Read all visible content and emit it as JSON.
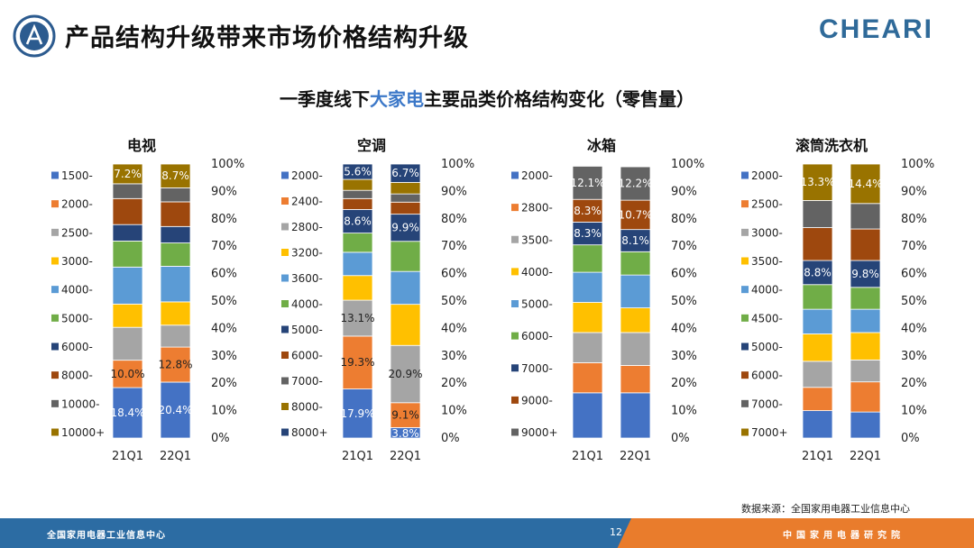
{
  "header": {
    "title": "产品结构升级带来市场价格结构升级",
    "brand": "CHEARI",
    "logo_text": "全国家用电器工业信息中心"
  },
  "subtitle": {
    "before": "一季度线下",
    "highlight": "大家电",
    "after": "主要品类价格结构变化（零售量）"
  },
  "source": "数据来源：全国家用电器工业信息中心",
  "footer": {
    "left": "全国家用电器工业信息中心",
    "page": "12",
    "right": "中国家用电器研究院"
  },
  "colors": {
    "c0": "#4472c4",
    "c1": "#ed7d31",
    "c2": "#a5a5a5",
    "c3": "#ffc000",
    "c4": "#5b9bd5",
    "c5": "#70ad47",
    "c6": "#264478",
    "c7": "#9e480e",
    "c8": "#636363",
    "c9": "#997300",
    "accent": "#3c78c8"
  },
  "chart_data": [
    {
      "type": "bar",
      "stacked": true,
      "title": "电视",
      "categories": [
        "21Q1",
        "22Q1"
      ],
      "yticks": [
        "0%",
        "10%",
        "20%",
        "30%",
        "40%",
        "50%",
        "60%",
        "70%",
        "80%",
        "90%",
        "100%"
      ],
      "series": [
        {
          "name": "1500-",
          "color": "c0",
          "values": [
            18.4,
            20.4
          ],
          "labels": [
            "18.4%",
            "20.4%"
          ]
        },
        {
          "name": "2000-",
          "color": "c1",
          "values": [
            10.0,
            12.8
          ],
          "labels": [
            "10.0%",
            "12.8%"
          ]
        },
        {
          "name": "2500-",
          "color": "c2",
          "values": [
            12.0,
            8.0
          ]
        },
        {
          "name": "3000-",
          "color": "c3",
          "values": [
            8.5,
            8.5
          ]
        },
        {
          "name": "4000-",
          "color": "c4",
          "values": [
            13.5,
            13.0
          ]
        },
        {
          "name": "5000-",
          "color": "c5",
          "values": [
            9.5,
            8.5
          ]
        },
        {
          "name": "6000-",
          "color": "c6",
          "values": [
            6.0,
            6.0
          ]
        },
        {
          "name": "8000-",
          "color": "c7",
          "values": [
            9.5,
            9.0
          ]
        },
        {
          "name": "10000-",
          "color": "c8",
          "values": [
            5.4,
            5.1
          ]
        },
        {
          "name": "10000+",
          "color": "c9",
          "values": [
            7.2,
            8.7
          ],
          "labels": [
            "7.2%",
            "8.7%"
          ]
        }
      ]
    },
    {
      "type": "bar",
      "stacked": true,
      "title": "空调",
      "categories": [
        "21Q1",
        "22Q1"
      ],
      "yticks": [
        "0%",
        "10%",
        "20%",
        "30%",
        "40%",
        "50%",
        "60%",
        "70%",
        "80%",
        "90%",
        "100%"
      ],
      "series": [
        {
          "name": "2000-",
          "color": "c0",
          "values": [
            17.9,
            3.8
          ],
          "labels": [
            "17.9%",
            "3.8%"
          ]
        },
        {
          "name": "2400-",
          "color": "c1",
          "values": [
            19.3,
            9.1
          ],
          "labels": [
            "19.3%",
            "9.1%"
          ]
        },
        {
          "name": "2800-",
          "color": "c2",
          "values": [
            13.1,
            20.9
          ],
          "labels": [
            "13.1%",
            "20.9%"
          ]
        },
        {
          "name": "3200-",
          "color": "c3",
          "values": [
            9.0,
            15.0
          ]
        },
        {
          "name": "3600-",
          "color": "c4",
          "values": [
            8.5,
            12.0
          ]
        },
        {
          "name": "4000-",
          "color": "c5",
          "values": [
            7.0,
            11.0
          ]
        },
        {
          "name": "5000-",
          "color": "c6",
          "values": [
            8.6,
            9.9
          ],
          "labels": [
            "8.6%",
            "9.9%"
          ]
        },
        {
          "name": "6000-",
          "color": "c7",
          "values": [
            4.0,
            4.4
          ]
        },
        {
          "name": "7000-",
          "color": "c8",
          "values": [
            3.0,
            3.0
          ]
        },
        {
          "name": "8000-",
          "color": "c9",
          "values": [
            4.0,
            4.2
          ]
        },
        {
          "name": "8000+",
          "color": "c6",
          "values": [
            5.6,
            6.7
          ],
          "labels": [
            "5.6%",
            "6.7%"
          ]
        }
      ]
    },
    {
      "type": "bar",
      "stacked": true,
      "title": "冰箱",
      "categories": [
        "21Q1",
        "22Q1"
      ],
      "yticks": [
        "0%",
        "10%",
        "20%",
        "30%",
        "40%",
        "50%",
        "60%",
        "70%",
        "80%",
        "90%",
        "100%"
      ],
      "series": [
        {
          "name": "2000-",
          "color": "c0",
          "values": [
            16.5,
            16.5
          ]
        },
        {
          "name": "2800-",
          "color": "c1",
          "values": [
            11.0,
            10.0
          ]
        },
        {
          "name": "3500-",
          "color": "c2",
          "values": [
            11.0,
            12.0
          ]
        },
        {
          "name": "4000-",
          "color": "c3",
          "values": [
            11.0,
            9.0
          ]
        },
        {
          "name": "5000-",
          "color": "c4",
          "values": [
            11.0,
            12.0
          ]
        },
        {
          "name": "6000-",
          "color": "c5",
          "values": [
            10.0,
            8.5
          ]
        },
        {
          "name": "7000-",
          "color": "c6",
          "values": [
            8.3,
            8.1
          ],
          "labels": [
            "8.3%",
            "8.1%"
          ]
        },
        {
          "name": "9000-",
          "color": "c7",
          "values": [
            8.3,
            10.7
          ],
          "labels": [
            "8.3%",
            "10.7%"
          ]
        },
        {
          "name": "9000+",
          "color": "c8",
          "values": [
            12.1,
            12.2
          ],
          "labels": [
            "12.1%",
            "12.2%"
          ]
        }
      ]
    },
    {
      "type": "bar",
      "stacked": true,
      "title": "滚筒洗衣机",
      "categories": [
        "21Q1",
        "22Q1"
      ],
      "yticks": [
        "0%",
        "10%",
        "20%",
        "30%",
        "40%",
        "50%",
        "60%",
        "70%",
        "80%",
        "90%",
        "100%"
      ],
      "series": [
        {
          "name": "2000-",
          "color": "c0",
          "values": [
            10.0,
            9.5
          ]
        },
        {
          "name": "2500-",
          "color": "c1",
          "values": [
            8.5,
            11.0
          ]
        },
        {
          "name": "3000-",
          "color": "c2",
          "values": [
            9.5,
            8.0
          ]
        },
        {
          "name": "3500-",
          "color": "c3",
          "values": [
            10.0,
            10.0
          ]
        },
        {
          "name": "4000-",
          "color": "c4",
          "values": [
            9.0,
            8.5
          ]
        },
        {
          "name": "4500-",
          "color": "c5",
          "values": [
            9.0,
            8.0
          ]
        },
        {
          "name": "5000-",
          "color": "c6",
          "values": [
            8.8,
            9.8
          ],
          "labels": [
            "8.8%",
            "9.8%"
          ]
        },
        {
          "name": "6000-",
          "color": "c7",
          "values": [
            12.0,
            11.5
          ]
        },
        {
          "name": "7000-",
          "color": "c8",
          "values": [
            9.9,
            9.3
          ]
        },
        {
          "name": "7000+",
          "color": "c9",
          "values": [
            13.3,
            14.4
          ],
          "labels": [
            "13.3%",
            "14.4%"
          ]
        }
      ]
    }
  ]
}
